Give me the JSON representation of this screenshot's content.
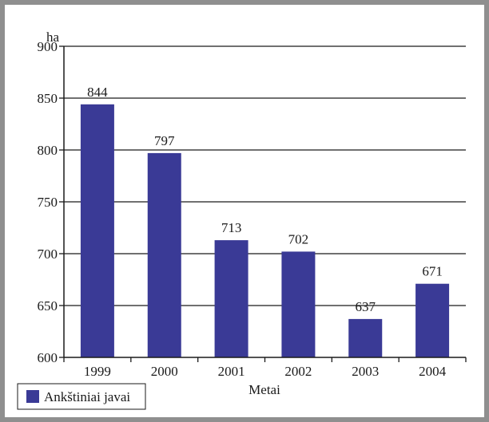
{
  "chart_data": {
    "type": "bar",
    "categories": [
      "1999",
      "2000",
      "2001",
      "2002",
      "2003",
      "2004"
    ],
    "series": [
      {
        "name": "Ankštiniai javai",
        "values": [
          844,
          797,
          713,
          702,
          637,
          671
        ]
      }
    ],
    "data_labels": [
      "844",
      "797",
      "713",
      "702",
      "637",
      "671"
    ],
    "title": "",
    "xlabel": "Metai",
    "ylabel": "ha",
    "ylim": [
      600,
      900
    ],
    "yticks": [
      600,
      650,
      700,
      750,
      800,
      850,
      900
    ],
    "grid": true,
    "legend_position": "bottom-left",
    "colors": {
      "bar": "#3a3a96",
      "grid": "#1a1a1a",
      "frame": "#8f8f8f"
    }
  }
}
